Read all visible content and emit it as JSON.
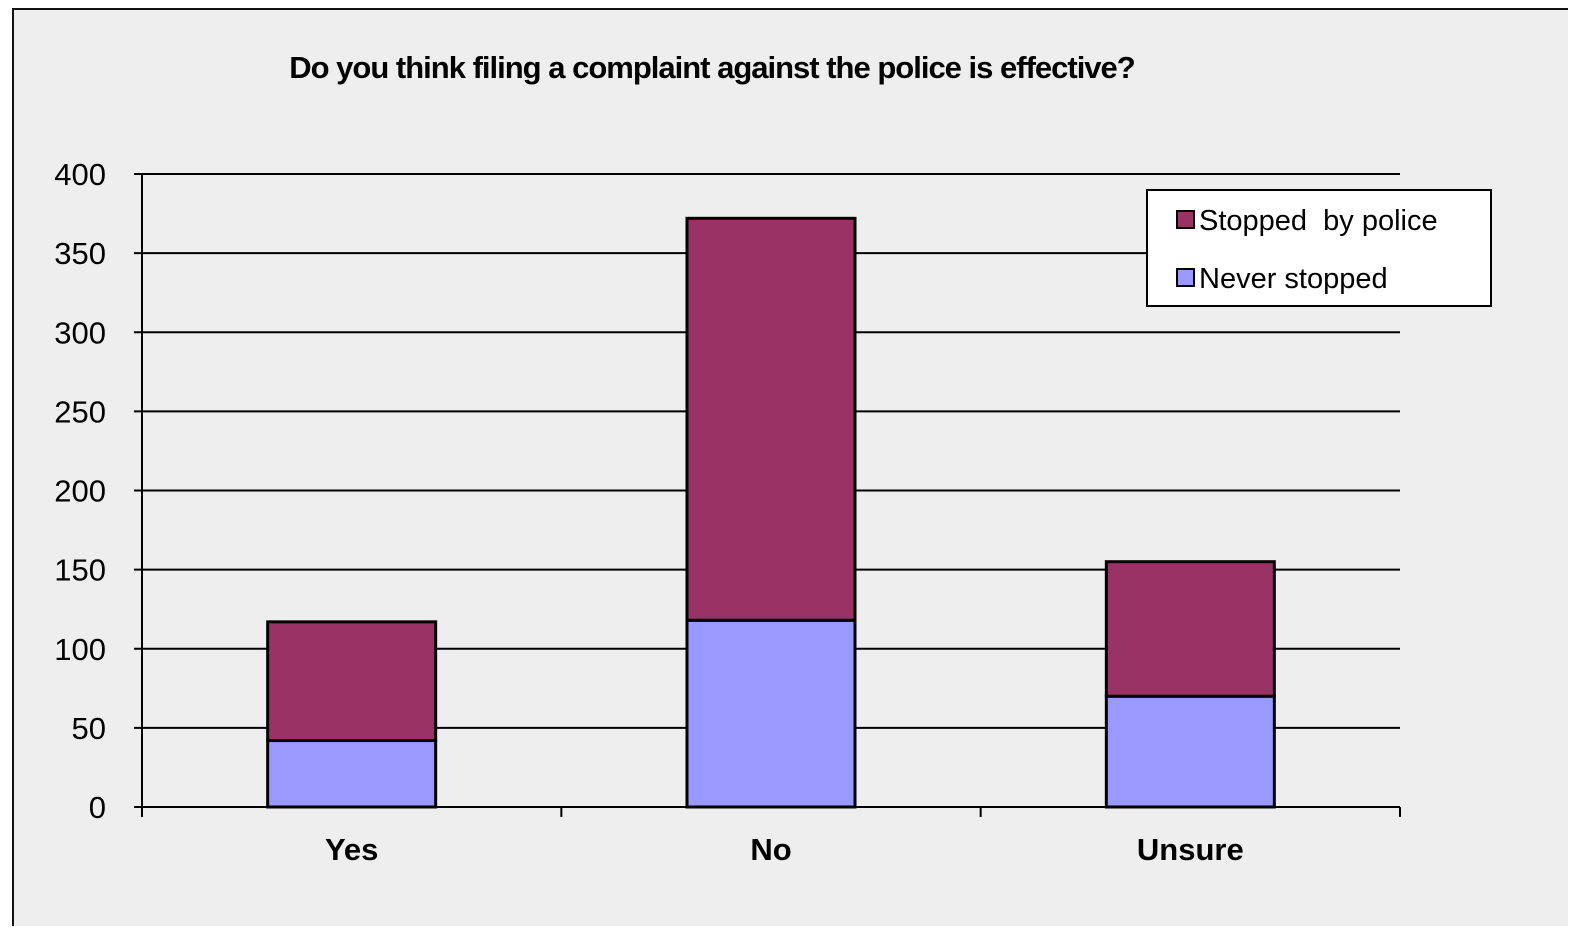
{
  "chart_data": {
    "type": "bar",
    "stacked": true,
    "title": "Do you think filing a complaint against the police is effective?",
    "xlabel": "",
    "ylabel": "",
    "categories": [
      "Yes",
      "No",
      "Unsure"
    ],
    "yticks": [
      "0",
      "50",
      "100",
      "150",
      "200",
      "250",
      "300",
      "350",
      "400"
    ],
    "ylim": [
      0,
      400
    ],
    "grid": true,
    "legend_position": "top-right",
    "series": [
      {
        "name": "Never stopped",
        "color": "#9999ff",
        "values": [
          42,
          118,
          70
        ]
      },
      {
        "name": "Stopped  by police",
        "color": "#993366",
        "values": [
          75,
          254,
          85
        ]
      }
    ],
    "legend_order": [
      1,
      0
    ]
  }
}
